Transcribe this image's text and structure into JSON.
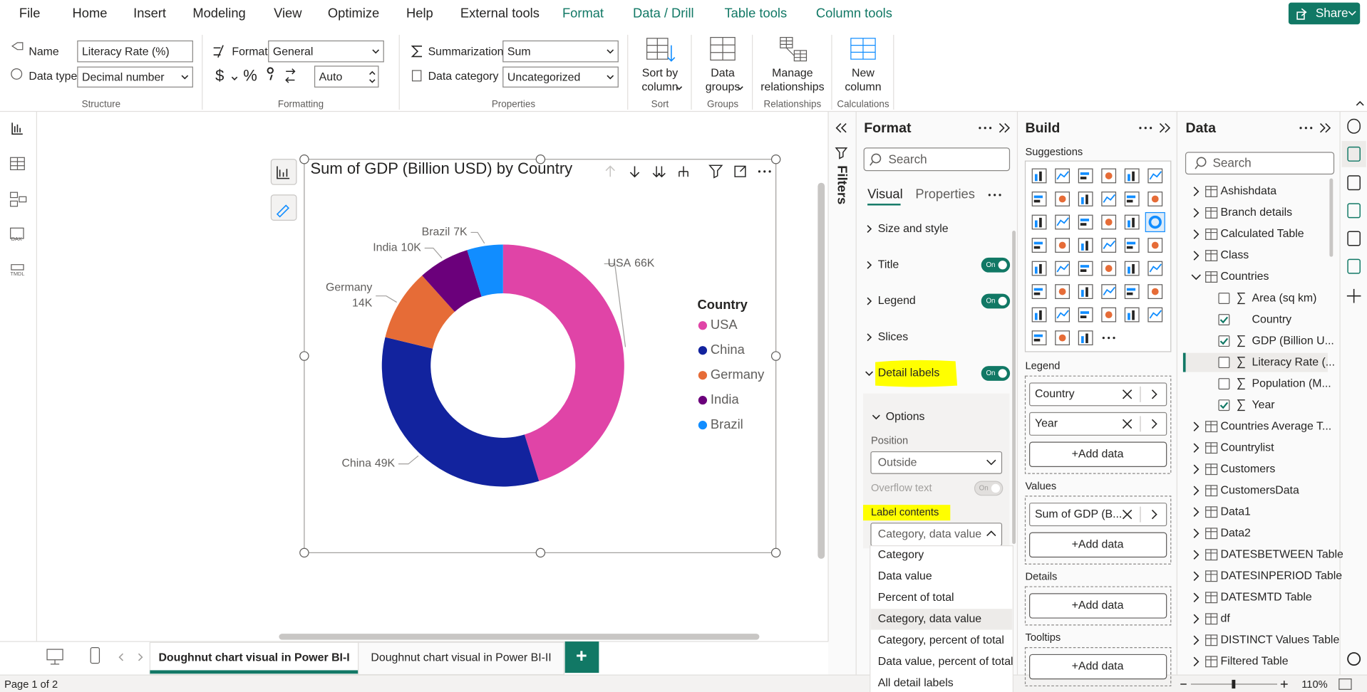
{
  "menu": {
    "tabs": [
      "File",
      "Home",
      "Insert",
      "Modeling",
      "View",
      "Optimize",
      "Help",
      "External tools"
    ],
    "context_tabs": [
      "Format",
      "Data / Drill",
      "Table tools",
      "Column tools"
    ],
    "share": "Share"
  },
  "ribbon": {
    "structure": {
      "name_label": "Name",
      "name_value": "Literacy Rate (%)",
      "type_label": "Data type",
      "type_value": "Decimal number",
      "group": "Structure"
    },
    "formatting": {
      "format_label": "Format",
      "format_value": "General",
      "currency": "$",
      "percent": "%",
      "decimals_value": "Auto",
      "group": "Formatting"
    },
    "properties": {
      "summarization_label": "Summarization",
      "summarization_value": "Sum",
      "category_label": "Data category",
      "category_value": "Uncategorized",
      "group": "Properties"
    },
    "sort": {
      "button": "Sort by column",
      "group": "Sort"
    },
    "groups": {
      "button": "Data groups",
      "group": "Groups"
    },
    "relationships": {
      "button": "Manage relationships",
      "group": "Relationships"
    },
    "calculations": {
      "button": "New column",
      "group": "Calculations"
    }
  },
  "nav": {
    "dax": "DAX",
    "tmdl": "TMDL"
  },
  "chart_data": {
    "type": "doughnut",
    "title": "Sum of GDP (Billion USD) by Country",
    "legend_title": "Country",
    "legend": "right",
    "categories": [
      "USA",
      "China",
      "Germany",
      "India",
      "Brazil"
    ],
    "values": [
      66000,
      49000,
      14000,
      10000,
      7000
    ],
    "value_labels": [
      "66K",
      "49K",
      "14K",
      "10K",
      "7K"
    ],
    "colors": [
      "#e044a7",
      "#12239e",
      "#e66c37",
      "#6b007b",
      "#118dff"
    ]
  },
  "filters": {
    "title": "Filters"
  },
  "format_pane": {
    "title": "Format",
    "search": "Search",
    "tabs": [
      "Visual",
      "Properties"
    ],
    "sections": [
      {
        "label": "Size and style"
      },
      {
        "label": "Title",
        "toggle": "On"
      },
      {
        "label": "Legend",
        "toggle": "On"
      },
      {
        "label": "Slices"
      },
      {
        "label": "Detail labels",
        "toggle": "On",
        "expanded": true
      }
    ],
    "options": {
      "title": "Options",
      "position_label": "Position",
      "position_value": "Outside",
      "overflow_label": "Overflow text",
      "overflow_toggle": "On",
      "contents_label": "Label contents",
      "contents_value": "Category, data value",
      "contents_choices": [
        "Category",
        "Data value",
        "Percent of total",
        "Category, data value",
        "Category, percent of total",
        "Data value, percent of total",
        "All detail labels"
      ]
    }
  },
  "build_pane": {
    "title": "Build",
    "suggestions": "Suggestions",
    "wells": [
      {
        "label": "Legend",
        "fields": [
          "Country",
          "Year"
        ],
        "add": "+Add data"
      },
      {
        "label": "Values",
        "fields": [
          "Sum of GDP (B..."
        ],
        "add": "+Add data"
      },
      {
        "label": "Details",
        "add": "+Add data"
      },
      {
        "label": "Tooltips",
        "add": "+Add data"
      }
    ]
  },
  "data_pane": {
    "title": "Data",
    "search": "Search",
    "items": [
      {
        "label": "Ashishdata",
        "kind": "table"
      },
      {
        "label": "Branch details",
        "kind": "table"
      },
      {
        "label": "Calculated Table",
        "kind": "table"
      },
      {
        "label": "Class",
        "kind": "table"
      },
      {
        "label": "Countries",
        "kind": "table",
        "expanded": true
      },
      {
        "label": "Area (sq km)",
        "kind": "field",
        "sigma": true,
        "checked": false
      },
      {
        "label": "Country",
        "kind": "field",
        "sigma": false,
        "checked": true
      },
      {
        "label": "GDP (Billion U...",
        "kind": "field",
        "sigma": true,
        "checked": true
      },
      {
        "label": "Literacy Rate (...",
        "kind": "field",
        "sigma": true,
        "checked": false,
        "selected": true
      },
      {
        "label": "Population (M...",
        "kind": "field",
        "sigma": true,
        "checked": false
      },
      {
        "label": "Year",
        "kind": "field",
        "sigma": true,
        "checked": true
      },
      {
        "label": "Countries Average T...",
        "kind": "table"
      },
      {
        "label": "Countrylist",
        "kind": "table"
      },
      {
        "label": "Customers",
        "kind": "table"
      },
      {
        "label": "CustomersData",
        "kind": "table"
      },
      {
        "label": "Data1",
        "kind": "table"
      },
      {
        "label": "Data2",
        "kind": "table"
      },
      {
        "label": "DATESBETWEEN Table",
        "kind": "table"
      },
      {
        "label": "DATESINPERIOD Table",
        "kind": "table"
      },
      {
        "label": "DATESMTD Table",
        "kind": "table"
      },
      {
        "label": "df",
        "kind": "table"
      },
      {
        "label": "DISTINCT Values Table",
        "kind": "table"
      },
      {
        "label": "Filtered Table",
        "kind": "table"
      }
    ]
  },
  "pages": {
    "tabs": [
      "Doughnut chart visual in Power BI-I",
      "Doughnut chart visual in Power BI-II"
    ],
    "active": 0,
    "add": "+"
  },
  "status": {
    "page": "Page 1 of 2",
    "zoom": "110%"
  }
}
